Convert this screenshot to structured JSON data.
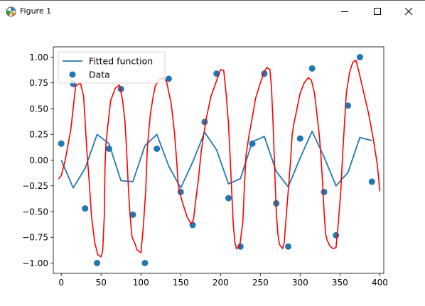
{
  "window": {
    "title": "Figure 1",
    "icon": "matplotlib-figure-icon",
    "controls": [
      "minimize-icon",
      "maximize-icon",
      "close-icon"
    ]
  },
  "chart_data": {
    "type": "line",
    "x_ticks": [
      0,
      50,
      100,
      150,
      200,
      250,
      300,
      350,
      400
    ],
    "y_ticks": [
      "−1.00",
      "−0.75",
      "−0.50",
      "−0.25",
      "0.00",
      "0.25",
      "0.50",
      "0.75",
      "1.00"
    ],
    "y_tick_values": [
      -1.0,
      -0.75,
      -0.5,
      -0.25,
      0.0,
      0.25,
      0.5,
      0.75,
      1.0
    ],
    "xlim": [
      -10,
      405
    ],
    "ylim": [
      -1.1,
      1.1
    ],
    "legend": {
      "placement": "top-left",
      "entries": [
        {
          "label": "Fitted function",
          "kind": "line",
          "color": "#1f77b4"
        },
        {
          "label": "Data",
          "kind": "marker",
          "color": "#1f77b4"
        }
      ]
    },
    "series": [
      {
        "name": "Fitted function",
        "kind": "line",
        "color": "#1f77b4",
        "x": [
          0,
          15,
          30,
          45,
          60,
          75,
          90,
          105,
          120,
          135,
          150,
          165,
          180,
          195,
          210,
          225,
          240,
          255,
          270,
          285,
          300,
          315,
          330,
          345,
          360,
          375,
          390
        ],
        "y": [
          0.0,
          -0.27,
          -0.08,
          0.25,
          0.16,
          -0.2,
          -0.21,
          0.14,
          0.25,
          -0.06,
          -0.27,
          -0.02,
          0.27,
          0.1,
          -0.23,
          -0.18,
          0.18,
          0.23,
          -0.11,
          -0.26,
          0.02,
          0.28,
          0.03,
          -0.25,
          -0.12,
          0.22,
          0.19
        ]
      },
      {
        "name": "Data",
        "kind": "scatter",
        "color": "#1f77b4",
        "x": [
          0,
          15,
          30,
          45,
          60,
          75,
          90,
          105,
          120,
          135,
          150,
          165,
          180,
          195,
          210,
          225,
          240,
          255,
          270,
          285,
          300,
          315,
          330,
          345,
          360,
          375,
          390
        ],
        "y": [
          0.16,
          0.74,
          -0.47,
          -1.0,
          0.11,
          0.69,
          -0.53,
          -1.0,
          0.11,
          0.79,
          -0.31,
          -0.63,
          0.37,
          0.84,
          -0.37,
          -0.84,
          0.16,
          0.84,
          -0.42,
          -0.84,
          0.21,
          0.89,
          -0.31,
          -0.73,
          0.53,
          1.0,
          -0.21
        ]
      },
      {
        "kind": "freehand",
        "color": "#ff0000",
        "x": [
          -3,
          0,
          5,
          12,
          18,
          24,
          28,
          30,
          32,
          35,
          38,
          42,
          46,
          50,
          52,
          54,
          55,
          56,
          58,
          62,
          68,
          73,
          77,
          80,
          82,
          84,
          86,
          88,
          89,
          92,
          95,
          100,
          103,
          106,
          108,
          110,
          112,
          115,
          118,
          123,
          127,
          132,
          138,
          142,
          145,
          147,
          149,
          151,
          155,
          158,
          163,
          166,
          168,
          172,
          176,
          182,
          188,
          194,
          200,
          204,
          207,
          210,
          212,
          214,
          216,
          218,
          220,
          224,
          228,
          230,
          232,
          236,
          240,
          244,
          250,
          254,
          258,
          262,
          264,
          266,
          268,
          270,
          272,
          274,
          276,
          278,
          280,
          284,
          288,
          290,
          292,
          296,
          300,
          305,
          310,
          314,
          318,
          321,
          324,
          326,
          328,
          330,
          332,
          334,
          337,
          341,
          345,
          348,
          351,
          353,
          354,
          356,
          358,
          362,
          366,
          370,
          374,
          380,
          386,
          392,
          397,
          400
        ],
        "y": [
          -0.18,
          -0.15,
          0.0,
          0.3,
          0.72,
          0.75,
          0.62,
          0.38,
          0.1,
          -0.2,
          -0.55,
          -0.8,
          -0.92,
          -0.94,
          -0.88,
          -0.55,
          -0.05,
          0.15,
          0.3,
          0.58,
          0.7,
          0.73,
          0.58,
          0.38,
          0.1,
          -0.22,
          -0.5,
          -0.68,
          -0.75,
          -0.8,
          -0.87,
          -0.9,
          -0.65,
          -0.3,
          0.1,
          0.3,
          0.45,
          0.6,
          0.72,
          0.78,
          0.8,
          0.77,
          0.55,
          0.28,
          -0.02,
          -0.25,
          -0.32,
          -0.38,
          -0.48,
          -0.55,
          -0.62,
          -0.58,
          -0.45,
          -0.2,
          0.1,
          0.4,
          0.62,
          0.75,
          0.88,
          0.87,
          0.65,
          0.35,
          0.05,
          -0.3,
          -0.62,
          -0.8,
          -0.86,
          -0.84,
          -0.6,
          -0.25,
          0.05,
          0.25,
          0.42,
          0.6,
          0.75,
          0.84,
          0.9,
          0.88,
          0.7,
          0.35,
          -0.1,
          -0.5,
          -0.72,
          -0.82,
          -0.84,
          -0.86,
          -0.8,
          -0.4,
          0.0,
          0.25,
          0.35,
          0.5,
          0.65,
          0.75,
          0.8,
          0.78,
          0.65,
          0.45,
          0.25,
          0.05,
          -0.2,
          -0.5,
          -0.72,
          -0.78,
          -0.83,
          -0.86,
          -0.85,
          -0.6,
          -0.3,
          0.0,
          0.15,
          0.4,
          0.65,
          0.85,
          0.95,
          0.97,
          0.85,
          0.65,
          0.45,
          0.2,
          -0.05,
          -0.3
        ]
      }
    ]
  }
}
